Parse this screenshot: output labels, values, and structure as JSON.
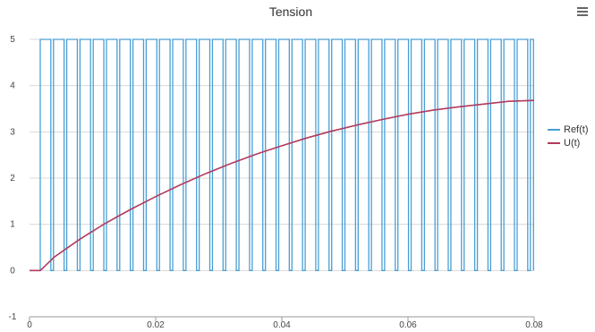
{
  "chart_data": {
    "type": "line",
    "title": "Tension",
    "xlabel": "",
    "ylabel": "",
    "xlim": [
      0,
      0.08
    ],
    "ylim": [
      -1,
      5
    ],
    "x_ticks": [
      "0",
      "0.02",
      "0.04",
      "0.06",
      "0.08"
    ],
    "y_ticks": [
      "-1",
      "0",
      "1",
      "2",
      "3",
      "4",
      "5"
    ],
    "grid": true,
    "legend_position": "right",
    "series": [
      {
        "name": "Ref(t)",
        "color": "#4a9fd4",
        "style": "square-wave",
        "low": 0,
        "high": 5,
        "first_rise": 0.0017,
        "period": 0.0021,
        "duty": 0.8,
        "end": 0.0799
      },
      {
        "name": "U(t)",
        "color": "#b23a5c",
        "x": [
          0,
          0.0017,
          0.004,
          0.008,
          0.012,
          0.016,
          0.02,
          0.024,
          0.028,
          0.032,
          0.036,
          0.04,
          0.044,
          0.048,
          0.052,
          0.056,
          0.06,
          0.064,
          0.068,
          0.072,
          0.076,
          0.08
        ],
        "y": [
          0,
          0,
          0.3,
          0.68,
          1.02,
          1.32,
          1.6,
          1.86,
          2.1,
          2.32,
          2.52,
          2.7,
          2.87,
          3.02,
          3.15,
          3.27,
          3.38,
          3.47,
          3.54,
          3.6,
          3.66,
          3.68
        ]
      }
    ]
  }
}
